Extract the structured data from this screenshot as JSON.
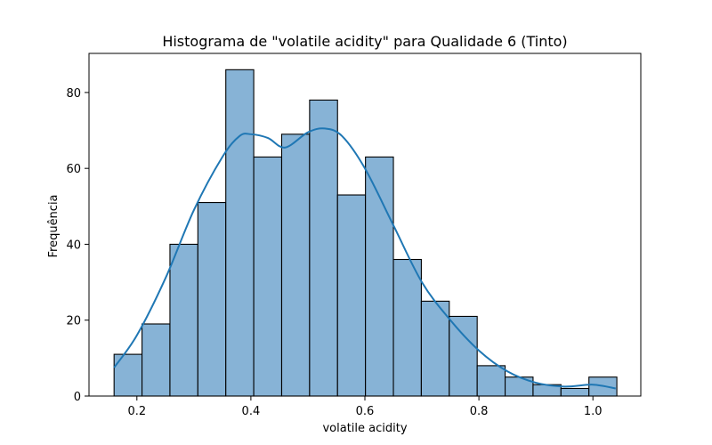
{
  "chart_data": {
    "type": "bar",
    "title": "Histograma de \"volatile acidity\" para Qualidade 6 (Tinto)",
    "xlabel": "volatile acidity",
    "ylabel": "Frequência",
    "xlim": [
      0.116,
      1.084
    ],
    "ylim": [
      0,
      90.3
    ],
    "bin_width": 0.049,
    "bin_starts": [
      0.16,
      0.209,
      0.258,
      0.307,
      0.356,
      0.405,
      0.454,
      0.503,
      0.552,
      0.601,
      0.65,
      0.699,
      0.748,
      0.797,
      0.846,
      0.895,
      0.944,
      0.993
    ],
    "values": [
      11,
      19,
      40,
      51,
      86,
      63,
      69,
      78,
      53,
      63,
      36,
      25,
      21,
      8,
      5,
      3,
      2,
      5
    ],
    "kde": {
      "x": [
        0.16,
        0.2,
        0.25,
        0.3,
        0.35,
        0.38,
        0.4,
        0.43,
        0.46,
        0.5,
        0.53,
        0.56,
        0.6,
        0.65,
        0.7,
        0.75,
        0.8,
        0.85,
        0.9,
        0.95,
        1.0,
        1.04
      ],
      "y": [
        7.5,
        16,
        31,
        49,
        63,
        68.5,
        69,
        68,
        65.5,
        69.5,
        70.5,
        68.5,
        60,
        45,
        30,
        20,
        12,
        6.5,
        3.5,
        2.5,
        3,
        2
      ]
    },
    "xticks": [
      "0.2",
      "0.4",
      "0.6",
      "0.8",
      "1.0"
    ],
    "xtick_values": [
      0.2,
      0.4,
      0.6,
      0.8,
      1.0
    ],
    "yticks": [
      "0",
      "20",
      "40",
      "60",
      "80"
    ],
    "ytick_values": [
      0,
      20,
      40,
      60,
      80
    ],
    "bar_color": "#87b3d6",
    "bar_edge_color": "#000000",
    "line_color": "#1f77b4",
    "grid": false,
    "legend": false
  }
}
